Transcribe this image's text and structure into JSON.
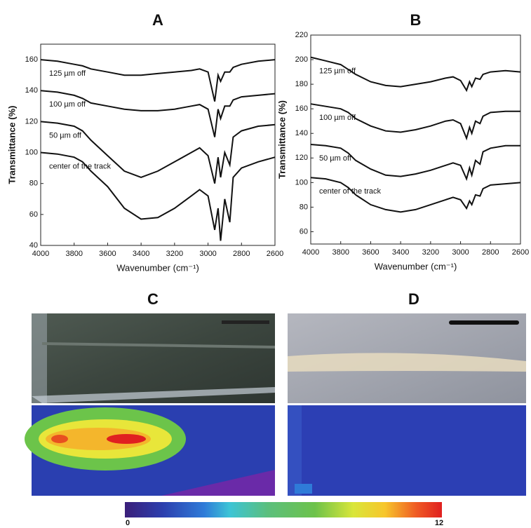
{
  "chart_data": [
    {
      "type": "line",
      "title": "A",
      "x_label": "Wavenumber (cm⁻¹)",
      "y_label": "Transmittance (%)",
      "x": [
        4000,
        3900,
        3800,
        3750,
        3700,
        3600,
        3500,
        3400,
        3300,
        3200,
        3100,
        3050,
        3000,
        2960,
        2940,
        2925,
        2900,
        2870,
        2850,
        2800,
        2700,
        2600
      ],
      "xlim": [
        4000,
        2600
      ],
      "xticks": [
        4000,
        3800,
        3600,
        3400,
        3200,
        3000,
        2800,
        2600
      ],
      "ylim": [
        40,
        170
      ],
      "yticks": [
        40,
        60,
        80,
        100,
        120,
        140,
        160
      ],
      "series": [
        {
          "name": "125 µm off",
          "color": "#111111",
          "values": [
            160,
            159,
            157,
            156,
            154,
            152,
            150,
            150,
            151,
            152,
            153,
            154,
            152,
            133,
            150,
            146,
            152,
            152,
            155,
            157,
            159,
            160
          ]
        },
        {
          "name": "100 µm off",
          "color": "#111111",
          "values": [
            140,
            139,
            137,
            135,
            132,
            130,
            128,
            127,
            127,
            128,
            130,
            131,
            128,
            110,
            128,
            122,
            130,
            130,
            134,
            136,
            137,
            138
          ]
        },
        {
          "name": "50 µm off",
          "color": "#111111",
          "values": [
            120,
            119,
            117,
            114,
            108,
            98,
            88,
            84,
            88,
            94,
            100,
            103,
            98,
            80,
            97,
            84,
            100,
            92,
            110,
            114,
            117,
            118
          ]
        },
        {
          "name": "center of the track",
          "color": "#111111",
          "values": [
            100,
            99,
            97,
            94,
            88,
            78,
            64,
            57,
            58,
            64,
            72,
            76,
            72,
            50,
            64,
            43,
            70,
            55,
            84,
            90,
            94,
            97
          ]
        }
      ]
    },
    {
      "type": "line",
      "title": "B",
      "x_label": "Wavenumber (cm⁻¹)",
      "y_label": "Transmittance (%)",
      "x": [
        4000,
        3900,
        3800,
        3750,
        3700,
        3600,
        3500,
        3400,
        3300,
        3200,
        3100,
        3050,
        3000,
        2960,
        2940,
        2925,
        2900,
        2870,
        2850,
        2800,
        2700,
        2600
      ],
      "xlim": [
        4000,
        2600
      ],
      "xticks": [
        4000,
        3800,
        3600,
        3400,
        3200,
        3000,
        2800,
        2600
      ],
      "ylim": [
        50,
        220
      ],
      "yticks": [
        60,
        80,
        100,
        120,
        140,
        160,
        180,
        200,
        220
      ],
      "series": [
        {
          "name": "125 µm off",
          "color": "#111111",
          "values": [
            202,
            199,
            196,
            192,
            188,
            182,
            179,
            178,
            180,
            182,
            185,
            186,
            183,
            175,
            182,
            178,
            185,
            184,
            188,
            190,
            191,
            190
          ]
        },
        {
          "name": "100 µm off",
          "color": "#111111",
          "values": [
            164,
            162,
            160,
            157,
            152,
            146,
            142,
            141,
            143,
            146,
            150,
            151,
            148,
            136,
            145,
            140,
            150,
            148,
            154,
            157,
            158,
            158
          ]
        },
        {
          "name": "50 µm off",
          "color": "#111111",
          "values": [
            131,
            130,
            128,
            124,
            118,
            111,
            106,
            105,
            107,
            110,
            114,
            116,
            114,
            103,
            112,
            106,
            118,
            115,
            125,
            128,
            130,
            130
          ]
        },
        {
          "name": "center of the track",
          "color": "#111111",
          "values": [
            104,
            103,
            100,
            96,
            90,
            82,
            78,
            76,
            78,
            82,
            86,
            88,
            86,
            79,
            85,
            82,
            90,
            89,
            95,
            98,
            99,
            100
          ]
        }
      ]
    }
  ],
  "panels": {
    "C": "C",
    "D": "D"
  },
  "colorbar": {
    "ticks": [
      0,
      12
    ]
  }
}
